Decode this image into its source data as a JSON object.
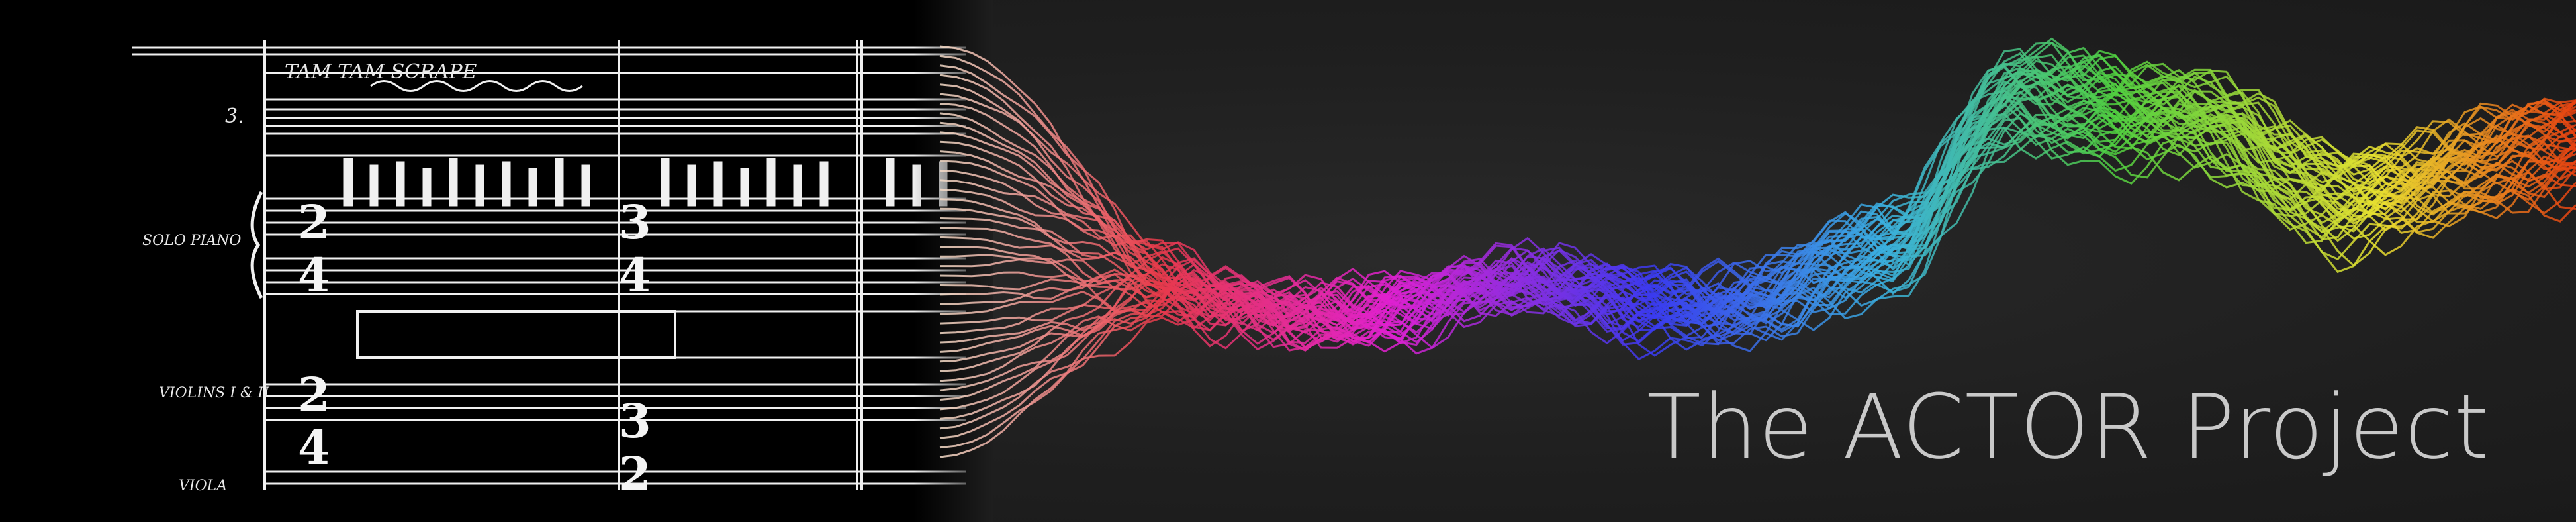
{
  "banner": {
    "title": "The ACTOR Project"
  },
  "score": {
    "annotations": {
      "top_direction": "TAM TAM SCRAPE",
      "staff_label_1": "3.",
      "staff_label_2": "SOLO PIANO",
      "staff_label_3": "VIOLINS I & II",
      "staff_label_4": "VIOLA"
    }
  },
  "colors": {
    "background": "#1e1e1e",
    "title_text": "#c9c9c9",
    "score_ink": "#f2f2f2",
    "gradient_stops": [
      "#f5e6d0",
      "#e83a4a",
      "#e020d0",
      "#3a3af0",
      "#3ab0e0",
      "#50d040",
      "#e8e030",
      "#e84010"
    ]
  }
}
